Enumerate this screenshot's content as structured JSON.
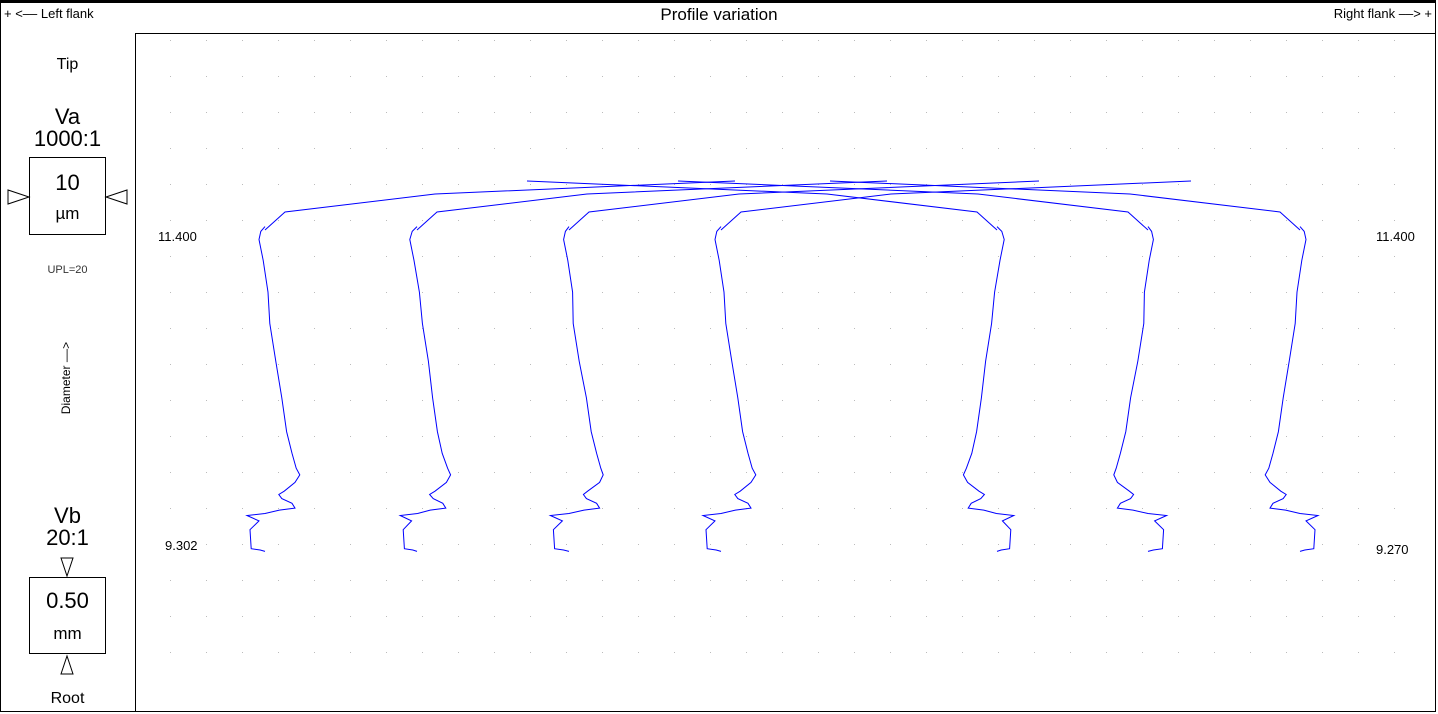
{
  "header": {
    "left_label": "+ <–– Left flank",
    "title": "Profile variation",
    "right_label": "Right flank ––> +"
  },
  "left_panel": {
    "tip_label": "Tip",
    "root_label": "Root",
    "va_label": "Va",
    "va_ratio": "1000:1",
    "va_value": "10",
    "va_unit": "µm",
    "upl_label": "UPL=20",
    "axis_label": "Diameter ––>",
    "vb_label": "Vb",
    "vb_ratio": "20:1",
    "vb_value": "0.50",
    "vb_unit": "mm"
  },
  "chart_data": {
    "type": "line",
    "title": "Profile variation",
    "ylabel": "Diameter ––>",
    "y_ticks_left": [
      "11.400",
      "9.302"
    ],
    "y_ticks_right": [
      "11.400",
      "9.270"
    ],
    "grid": "dotted",
    "line_color": "#0000ff",
    "series": [
      {
        "points": [
          [
            0.0,
            -0.05
          ],
          [
            -0.7,
            0.02
          ],
          [
            -1.0,
            0.14
          ],
          [
            -0.3,
            0.45
          ],
          [
            0.5,
            0.92
          ],
          [
            0.8,
            1.38
          ],
          [
            1.8,
            1.94
          ],
          [
            2.8,
            2.48
          ],
          [
            3.6,
            2.98
          ],
          [
            4.5,
            3.3
          ],
          [
            5.2,
            3.52
          ],
          [
            5.8,
            3.62
          ],
          [
            5.0,
            3.73
          ],
          [
            3.2,
            3.86
          ],
          [
            2.3,
            3.91
          ],
          [
            2.8,
            3.97
          ],
          [
            4.5,
            4.04
          ],
          [
            5.0,
            4.11
          ],
          [
            2.4,
            4.14
          ],
          [
            0.0,
            4.19
          ],
          [
            -3.0,
            4.22
          ],
          [
            -1.0,
            4.3
          ],
          [
            -2.5,
            4.43
          ],
          [
            -2.3,
            4.71
          ],
          [
            -0.8,
            4.73
          ],
          [
            0.0,
            4.75
          ]
        ]
      },
      {
        "points": [
          [
            0.0,
            -0.05
          ],
          [
            -0.8,
            0.02
          ],
          [
            -1.2,
            0.14
          ],
          [
            -0.5,
            0.45
          ],
          [
            0.4,
            0.92
          ],
          [
            0.9,
            1.38
          ],
          [
            1.9,
            1.94
          ],
          [
            2.6,
            2.48
          ],
          [
            3.4,
            2.98
          ],
          [
            4.2,
            3.3
          ],
          [
            5.1,
            3.52
          ],
          [
            5.6,
            3.62
          ],
          [
            4.9,
            3.73
          ],
          [
            3.0,
            3.86
          ],
          [
            2.1,
            3.91
          ],
          [
            2.7,
            3.97
          ],
          [
            4.3,
            4.04
          ],
          [
            4.8,
            4.11
          ],
          [
            2.2,
            4.14
          ],
          [
            0.1,
            4.19
          ],
          [
            -2.8,
            4.22
          ],
          [
            -0.9,
            4.3
          ],
          [
            -2.3,
            4.43
          ],
          [
            -2.1,
            4.71
          ],
          [
            -0.7,
            4.73
          ],
          [
            0.0,
            4.75
          ]
        ]
      },
      {
        "points": [
          [
            0.0,
            -0.05
          ],
          [
            -0.6,
            0.02
          ],
          [
            -0.9,
            0.14
          ],
          [
            -0.2,
            0.45
          ],
          [
            0.6,
            0.92
          ],
          [
            0.7,
            1.38
          ],
          [
            1.7,
            1.94
          ],
          [
            2.9,
            2.48
          ],
          [
            3.7,
            2.98
          ],
          [
            4.6,
            3.3
          ],
          [
            5.3,
            3.52
          ],
          [
            5.7,
            3.62
          ],
          [
            5.1,
            3.73
          ],
          [
            3.1,
            3.86
          ],
          [
            2.4,
            3.91
          ],
          [
            2.9,
            3.97
          ],
          [
            4.6,
            4.04
          ],
          [
            5.1,
            4.11
          ],
          [
            2.5,
            4.14
          ],
          [
            0.0,
            4.19
          ],
          [
            -3.1,
            4.22
          ],
          [
            -1.1,
            4.3
          ],
          [
            -2.6,
            4.43
          ],
          [
            -2.4,
            4.71
          ],
          [
            -0.9,
            4.73
          ],
          [
            0.0,
            4.75
          ]
        ]
      }
    ]
  }
}
